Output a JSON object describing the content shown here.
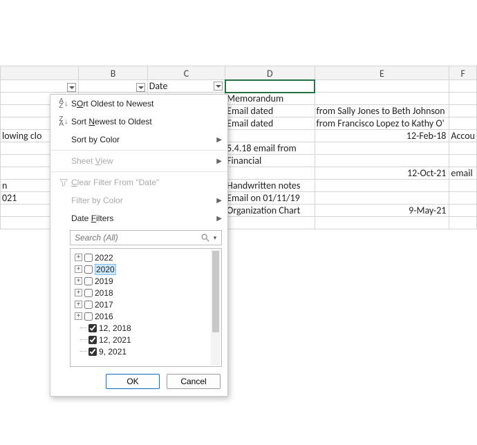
{
  "columns": [
    "B",
    "C",
    "D",
    "E",
    "F"
  ],
  "header_row": {
    "C_label": "Date"
  },
  "cells": {
    "A": [
      "",
      "",
      "",
      "lowing clo",
      "",
      "",
      "",
      "n",
      "021",
      "",
      ""
    ],
    "D": [
      "Memorandum",
      "Email dated",
      "Email dated",
      "",
      "5.4.18 email from",
      "Financial",
      "",
      "Handwritten notes",
      "Email on 01/11/19",
      "Organization Chart",
      ""
    ],
    "E": [
      "",
      "from Sally Jones to Beth Johnson",
      "from Francisco Lopez to Kathy O'",
      "12-Feb-18",
      "",
      "",
      "12-Oct-21",
      "",
      "",
      "9-May-21",
      ""
    ],
    "F": [
      "",
      "",
      "",
      "Accou",
      "",
      "",
      "email",
      "",
      "",
      "",
      ""
    ]
  },
  "selected_cell": "D1",
  "menu": {
    "sort_asc": "Sort Oldest to Newest",
    "sort_asc_u": "O",
    "sort_desc": "Sort Newest to Oldest",
    "sort_desc_u": "N",
    "sort_color": "Sort by Color",
    "sheet_view": "Sheet View",
    "clear_filter": "Clear Filter From \"Date\"",
    "filter_color": "Filter by Color",
    "date_filters": "Date Filters",
    "search_placeholder": "Search (All)",
    "years": [
      {
        "label": "2022",
        "checked": false,
        "expand": "+"
      },
      {
        "label": "2020",
        "checked": false,
        "expand": "+",
        "selected": true
      },
      {
        "label": "2019",
        "checked": false,
        "expand": "+"
      },
      {
        "label": "2018",
        "checked": false,
        "expand": "+"
      },
      {
        "label": "2017",
        "checked": false,
        "expand": "+"
      },
      {
        "label": "2016",
        "checked": false,
        "expand": "+"
      }
    ],
    "extras": [
      {
        "label": "12, 2018",
        "checked": true
      },
      {
        "label": "12, 2021",
        "checked": true
      },
      {
        "label": "9, 2021",
        "checked": true
      }
    ],
    "ok": "OK",
    "cancel": "Cancel"
  },
  "colors": {
    "selection": "#217346",
    "menu_border": "#c7c7c7",
    "highlight": "#cce8ff"
  }
}
